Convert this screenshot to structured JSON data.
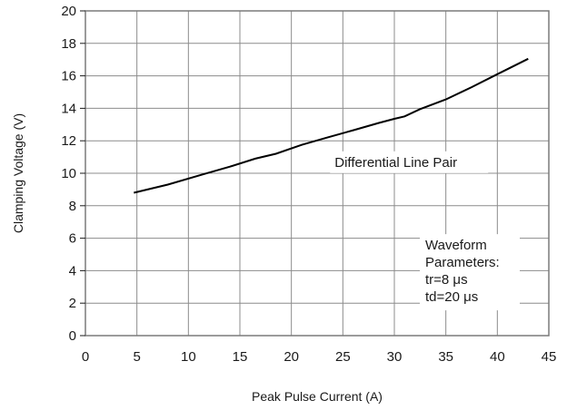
{
  "chart_data": {
    "type": "line",
    "title": "",
    "xlabel": "Peak Pulse Current (A)",
    "ylabel": "Clamping Voltage (V)",
    "xlim": [
      0,
      45
    ],
    "ylim": [
      0,
      20
    ],
    "x_ticks": [
      0,
      5,
      10,
      15,
      20,
      25,
      30,
      35,
      40,
      45
    ],
    "y_ticks": [
      0,
      2,
      4,
      6,
      8,
      10,
      12,
      14,
      16,
      18,
      20
    ],
    "grid": true,
    "line_color": "#000000",
    "grid_color": "#8c8c8c",
    "series": [
      {
        "x": [
          4.7,
          8,
          11.5,
          14,
          16.5,
          18.5,
          21,
          23.5,
          26,
          28.5,
          30,
          31,
          32.5,
          35,
          37.5,
          40,
          43
        ],
        "y": [
          8.8,
          9.3,
          9.95,
          10.4,
          10.9,
          11.2,
          11.75,
          12.2,
          12.65,
          13.1,
          13.35,
          13.5,
          13.95,
          14.55,
          15.3,
          16.1,
          17.05
        ]
      }
    ],
    "annotations": {
      "series_label": "Differential Line Pair",
      "waveform_lines": [
        "Waveform",
        "Parameters:",
        "tr=8 μs",
        "td=20 μs"
      ]
    }
  }
}
